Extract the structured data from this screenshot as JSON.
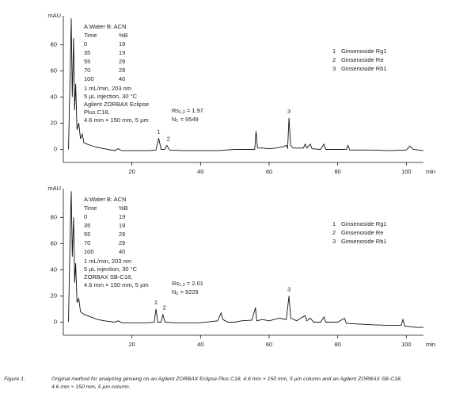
{
  "chart_data": [
    {
      "type": "line",
      "ylabel": "mAU",
      "xlabel": "min",
      "xlim": [
        0,
        105
      ],
      "ylim": [
        -10,
        102
      ],
      "xticks": [
        20,
        40,
        60,
        80,
        100
      ],
      "yticks": [
        0,
        20,
        40,
        60,
        80
      ],
      "color": "#111111",
      "x": [
        1.5,
        2,
        2.3,
        2.6,
        3,
        3.3,
        3.6,
        4,
        4.5,
        5,
        5.5,
        6,
        7,
        8,
        10,
        12,
        15,
        16,
        17,
        20,
        25,
        27,
        27.8,
        28.5,
        29.5,
        30.2,
        31,
        35,
        40,
        45,
        50,
        55,
        55.8,
        56.2,
        56.6,
        58,
        60,
        62,
        64,
        65,
        65.4,
        65.8,
        66.3,
        67,
        70,
        70.5,
        71,
        72,
        72.5,
        75,
        76,
        76.5,
        80,
        82.5,
        83,
        83.5,
        90,
        95,
        100,
        101,
        102,
        105
      ],
      "values": [
        0,
        60,
        100,
        40,
        85,
        30,
        50,
        15,
        20,
        8,
        12,
        5,
        4,
        3,
        1.5,
        0.5,
        -1,
        0.5,
        -1,
        -1,
        -1,
        -0.5,
        8.5,
        0,
        0,
        3,
        -0.5,
        -1,
        -1,
        -1,
        0,
        0,
        0,
        14,
        1,
        1,
        0.5,
        1,
        2,
        3,
        1,
        24,
        3,
        1,
        1,
        4,
        1,
        4,
        0.5,
        0,
        4,
        0,
        0,
        0,
        3,
        -0.5,
        -0.5,
        -1,
        -0.5,
        2.5,
        0,
        -1
      ],
      "mobile_phase": "A:Water  B: ACN",
      "gradient_header": [
        "Time",
        "%B"
      ],
      "gradient_rows": [
        [
          "0",
          "19"
        ],
        [
          "35",
          "19"
        ],
        [
          "55",
          "29"
        ],
        [
          "70",
          "29"
        ],
        [
          "100",
          "40"
        ]
      ],
      "conditions": [
        "1 mL/min, 203 nm",
        "5 µL injection, 30 °C",
        "Agilent ZORBAX Eclipse",
        "Plus C18,",
        "4.6 mm × 150 mm, 5 µm"
      ],
      "rs": {
        "label": "Rs",
        "sub": "1,2",
        "value": " = 1.97"
      },
      "n": {
        "label": "N",
        "sub": "1",
        "value": " = 9549"
      },
      "peak_labels": [
        "1",
        "2",
        "3"
      ],
      "legend": [
        {
          "num": "1",
          "name": "Ginsenoside Rg1"
        },
        {
          "num": "2",
          "name": "Ginsenoside Re"
        },
        {
          "num": "3",
          "name": "Ginsenoside Rb1"
        }
      ]
    },
    {
      "type": "line",
      "ylabel": "mAU",
      "xlabel": "min",
      "xlim": [
        0,
        105
      ],
      "ylim": [
        -10,
        102
      ],
      "xticks": [
        20,
        40,
        60,
        80,
        100
      ],
      "yticks": [
        0,
        20,
        40,
        60,
        80
      ],
      "color": "#111111",
      "x": [
        1.5,
        2,
        2.3,
        2.6,
        3,
        3.3,
        3.6,
        4,
        4.5,
        5,
        6,
        8,
        10,
        12,
        15,
        16,
        17,
        20,
        25,
        26.5,
        27,
        27.5,
        28.5,
        29,
        29.6,
        32,
        40,
        45,
        46,
        46.5,
        48,
        50,
        52,
        55,
        56,
        56.4,
        58,
        60,
        63,
        65,
        65.8,
        66.3,
        68,
        70.5,
        71,
        72,
        73,
        75,
        76,
        76.5,
        80,
        82,
        82.5,
        90,
        95,
        98.5,
        99,
        99.5,
        103,
        105
      ],
      "values": [
        0,
        70,
        100,
        50,
        80,
        30,
        45,
        15,
        18,
        8,
        6,
        4,
        2,
        1,
        0,
        1,
        -0.5,
        -0.5,
        -0.5,
        0,
        10,
        0,
        0,
        6,
        0,
        -0.5,
        -0.5,
        1,
        7,
        2,
        0,
        0,
        1,
        1.5,
        11,
        1,
        2,
        1,
        3,
        2,
        20,
        3,
        1,
        5,
        1,
        3,
        0,
        0,
        4,
        0,
        0,
        3,
        -1,
        -2,
        -2.5,
        -2.5,
        2,
        -3,
        -4,
        -4
      ],
      "mobile_phase": "A:Water  B: ACN",
      "gradient_header": [
        "Time",
        "%B"
      ],
      "gradient_rows": [
        [
          "0",
          "19"
        ],
        [
          "35",
          "19"
        ],
        [
          "55",
          "29"
        ],
        [
          "70",
          "29"
        ],
        [
          "100",
          "40"
        ]
      ],
      "conditions": [
        "1 mL/min, 203 nm",
        "5 µL injection, 30 °C",
        "ZORBAX SB-C18,",
        "4.6 mm × 150 mm, 5 µm"
      ],
      "rs": {
        "label": "Rs",
        "sub": "1,2",
        "value": " = 2.01"
      },
      "n": {
        "label": "N",
        "sub": "1",
        "value": " = 9229"
      },
      "peak_labels": [
        "1",
        "2",
        "3"
      ],
      "legend": [
        {
          "num": "1",
          "name": "Ginsenoside Rg1"
        },
        {
          "num": "2",
          "name": "Ginsenoside Re"
        },
        {
          "num": "3",
          "name": "Ginsenoside Rb1"
        }
      ]
    }
  ],
  "caption": {
    "label": "Figure 1.",
    "lines": [
      "Original method for analyzing ginseng on an Agilent ZORBAX Eclipse Plus C18, 4.6 mm × 150 mm, 5 µm column and an Agilent ZORBAX SB-C18,",
      "4.6 mm × 150 mm, 5 µm column."
    ]
  }
}
